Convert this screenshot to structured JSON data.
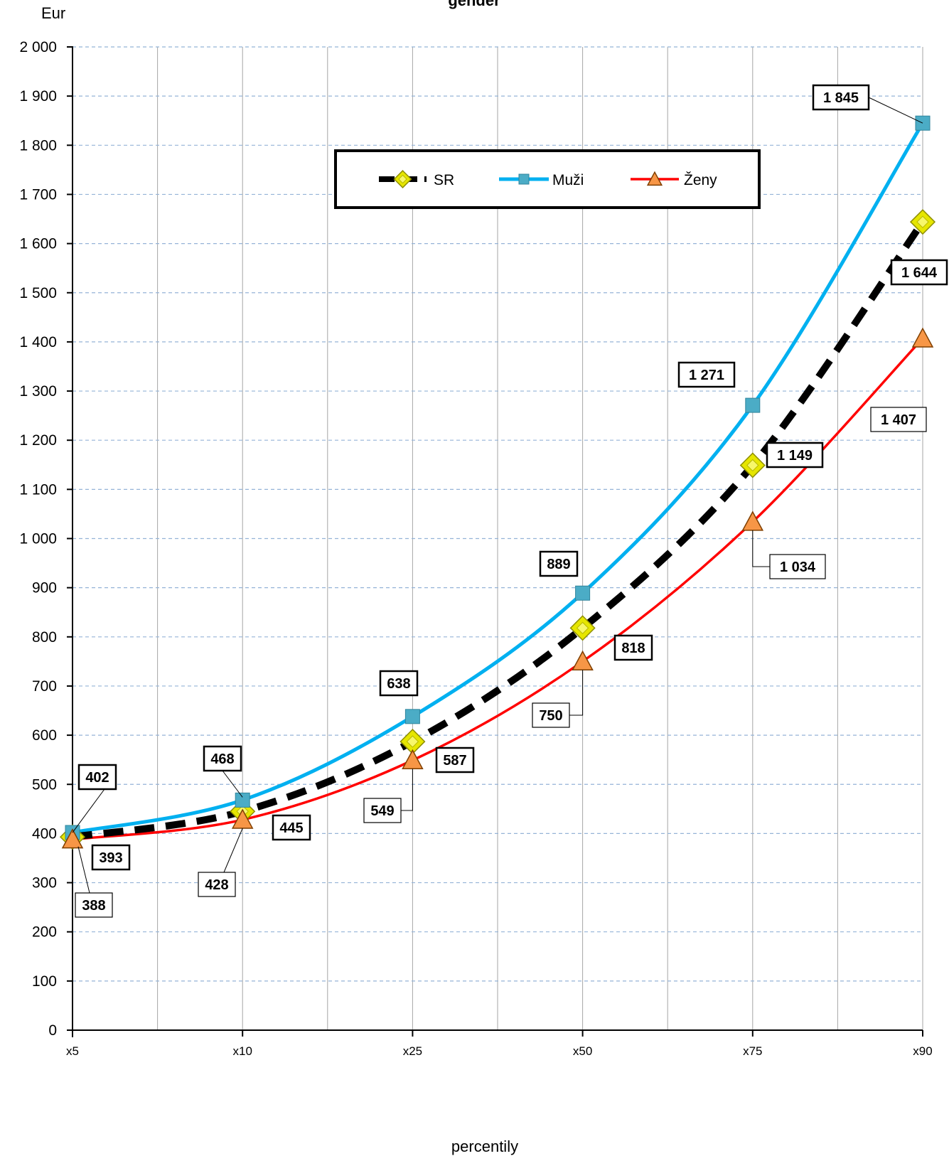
{
  "chart_data": {
    "type": "line",
    "title": "gender",
    "ylabel": "Eur",
    "xlabel": "percentily",
    "categories": [
      "x5",
      "x10",
      "x25",
      "x50",
      "x75",
      "x90"
    ],
    "ylim": [
      0,
      2000
    ],
    "yticks": [
      0,
      100,
      200,
      300,
      400,
      500,
      600,
      700,
      800,
      900,
      1000,
      1100,
      1200,
      1300,
      1400,
      1500,
      1600,
      1700,
      1800,
      1900,
      2000
    ],
    "ytick_labels": [
      "0",
      "100",
      "200",
      "300",
      "400",
      "500",
      "600",
      "700",
      "800",
      "900",
      "1 000",
      "1 100",
      "1 200",
      "1 300",
      "1 400",
      "1 500",
      "1 600",
      "1 700",
      "1 800",
      "1 900",
      "2 000"
    ],
    "grid": true,
    "legend_position": "top-center",
    "series": [
      {
        "name": "SR",
        "color": "#000000",
        "marker": "diamond",
        "marker_color": "#e6e600",
        "line_style": "dashed",
        "values": [
          393,
          445,
          587,
          818,
          1149,
          1644
        ],
        "labels": [
          "393",
          "445",
          "587",
          "818",
          "1 149",
          "1 644"
        ]
      },
      {
        "name": "Muži",
        "color": "#00b0f0",
        "marker": "square",
        "marker_color": "#4bacc6",
        "line_style": "solid",
        "values": [
          402,
          468,
          638,
          889,
          1271,
          1845
        ],
        "labels": [
          "402",
          "468",
          "638",
          "889",
          "1 271",
          "1 845"
        ]
      },
      {
        "name": "Ženy",
        "color": "#ff0000",
        "marker": "triangle",
        "marker_color": "#f79646",
        "line_style": "solid",
        "values": [
          388,
          428,
          549,
          750,
          1034,
          1407
        ],
        "labels": [
          "388",
          "428",
          "549",
          "750",
          "1 034",
          "1 407"
        ]
      }
    ]
  }
}
